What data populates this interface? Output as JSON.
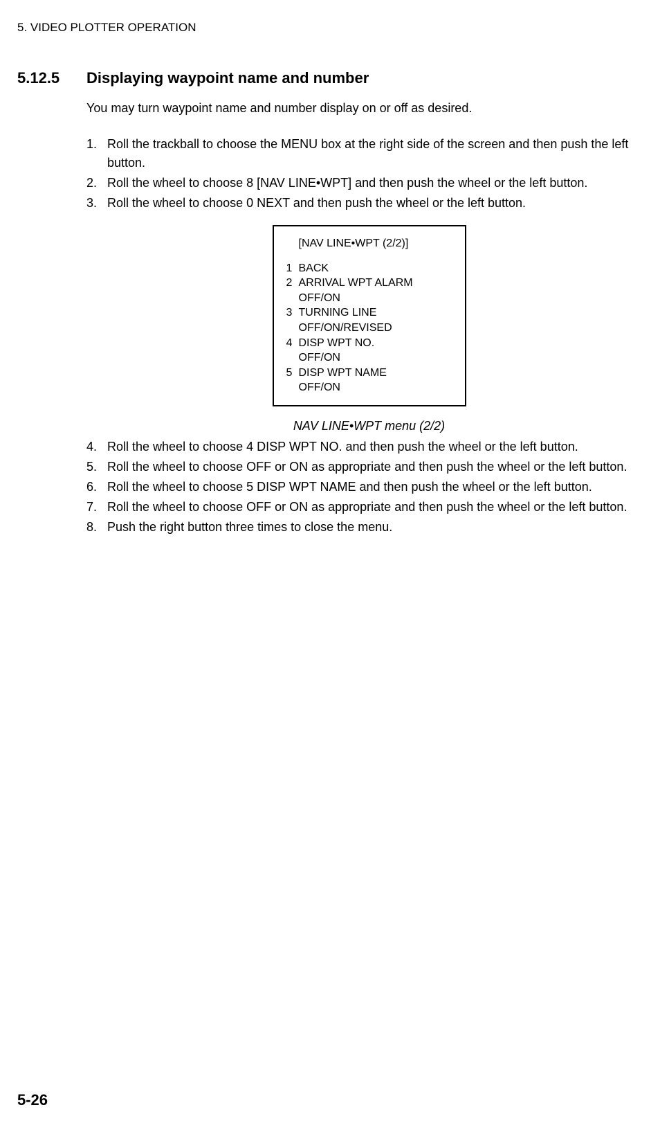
{
  "header": "5. VIDEO PLOTTER OPERATION",
  "section": {
    "number": "5.12.5",
    "title": "Displaying waypoint name and number"
  },
  "intro": "You may turn waypoint name and number display on or off as desired.",
  "steps_a": [
    {
      "num": "1.",
      "text": "Roll the trackball to choose the MENU box at the right side of the screen and then push the left button."
    },
    {
      "num": "2.",
      "text": "Roll the wheel to choose 8 [NAV LINE•WPT] and then push the wheel or the left button."
    },
    {
      "num": "3.",
      "text": "Roll the wheel to choose 0 NEXT and then push the wheel or the left button."
    }
  ],
  "menu": {
    "title": "[NAV LINE•WPT (2/2)]",
    "items": [
      {
        "num": "1",
        "text": "BACK",
        "sub": ""
      },
      {
        "num": "2",
        "text": "ARRIVAL WPT ALARM",
        "sub": "OFF/ON"
      },
      {
        "num": "3",
        "text": "TURNING LINE",
        "sub": "OFF/ON/REVISED"
      },
      {
        "num": "4",
        "text": "DISP WPT NO.",
        "sub": "OFF/ON"
      },
      {
        "num": "5",
        "text": "DISP WPT NAME",
        "sub": "OFF/ON"
      }
    ]
  },
  "caption": "NAV LINE•WPT menu (2/2)",
  "steps_b": [
    {
      "num": "4.",
      "text": "Roll the wheel to choose 4 DISP WPT NO. and then push the wheel or the left button."
    },
    {
      "num": "5.",
      "text": "Roll the wheel to choose OFF or ON as appropriate and then push the wheel or the left button."
    },
    {
      "num": "6.",
      "text": "Roll the wheel to choose 5 DISP WPT NAME and then push the wheel or the left button."
    },
    {
      "num": "7.",
      "text": "Roll the wheel to choose OFF or ON as appropriate and then push the wheel or the left button."
    },
    {
      "num": "8.",
      "text": "Push the right button three times to close the menu."
    }
  ],
  "page_number": "5-26"
}
